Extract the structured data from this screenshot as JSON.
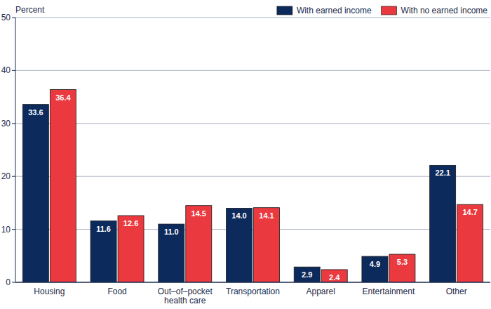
{
  "chart_data": {
    "type": "bar",
    "y_label": "Percent",
    "categories": [
      "Housing",
      "Food",
      "Out–of–pocket health care",
      "Transportation",
      "Apparel",
      "Entertainment",
      "Other"
    ],
    "series": [
      {
        "name": "With earned income",
        "color": "#0c2a5c",
        "values": [
          33.6,
          11.6,
          11.0,
          14.0,
          2.9,
          4.9,
          22.1
        ],
        "value_labels": [
          "33.6",
          "11.6",
          "11.0",
          "14.0",
          "2.9",
          "4.9",
          "22.1"
        ]
      },
      {
        "name": "With no earned income",
        "color": "#ea3a40",
        "values": [
          36.4,
          12.6,
          14.5,
          14.1,
          2.4,
          5.3,
          14.7
        ],
        "value_labels": [
          "36.4",
          "12.6",
          "14.5",
          "14.1",
          "2.4",
          "5.3",
          "14.7"
        ]
      }
    ],
    "ylim": [
      0,
      50
    ],
    "yticks": [
      0,
      10,
      20,
      30,
      40,
      50
    ],
    "grid": true,
    "legend": "top-right",
    "data_labels": true
  }
}
